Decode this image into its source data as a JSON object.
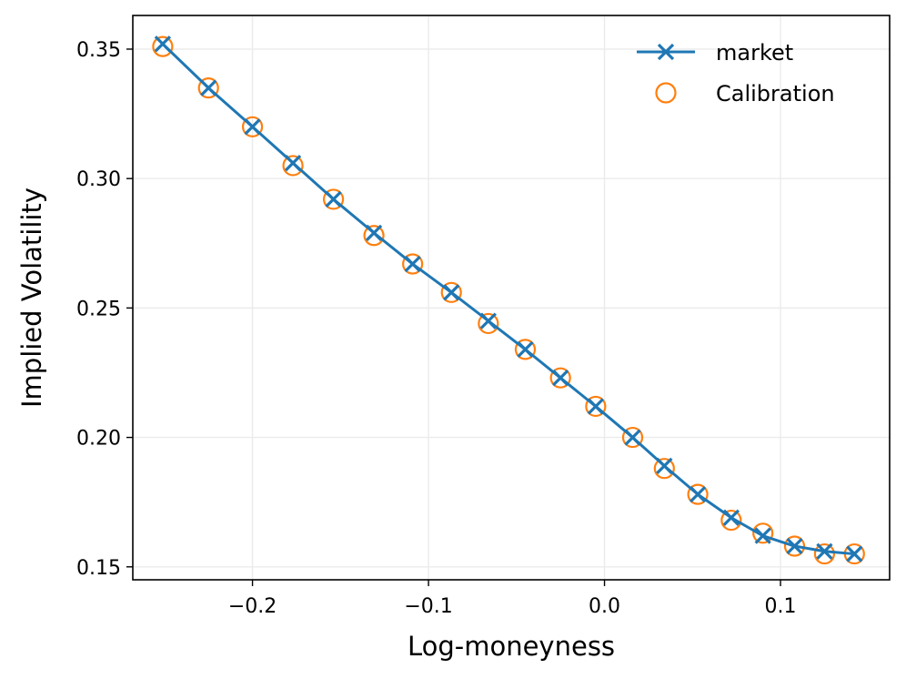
{
  "chart_data": {
    "type": "line",
    "xlabel": "Log-moneyness",
    "ylabel": "Implied Volatility",
    "xlim": [
      -0.268,
      0.162
    ],
    "ylim": [
      0.145,
      0.363
    ],
    "xticks": [
      -0.2,
      -0.1,
      0.0,
      0.1
    ],
    "xtick_labels": [
      "−0.2",
      "−0.1",
      "0.0",
      "0.1"
    ],
    "yticks": [
      0.15,
      0.2,
      0.25,
      0.3,
      0.35
    ],
    "ytick_labels": [
      "0.15",
      "0.20",
      "0.25",
      "0.30",
      "0.35"
    ],
    "grid": true,
    "legend": "top-right",
    "x": [
      -0.251,
      -0.225,
      -0.2,
      -0.177,
      -0.154,
      -0.131,
      -0.109,
      -0.087,
      -0.066,
      -0.045,
      -0.025,
      -0.005,
      0.016,
      0.034,
      0.053,
      0.072,
      0.09,
      0.108,
      0.125,
      0.142
    ],
    "series": [
      {
        "name": "market",
        "color": "#1f77b4",
        "marker": "x",
        "line": true,
        "values": [
          0.352,
          0.335,
          0.32,
          0.306,
          0.292,
          0.279,
          0.267,
          0.256,
          0.245,
          0.234,
          0.223,
          0.212,
          0.2,
          0.189,
          0.178,
          0.169,
          0.162,
          0.158,
          0.156,
          0.155
        ]
      },
      {
        "name": "Calibration",
        "color": "#ff7f0e",
        "marker": "o",
        "line": false,
        "values": [
          0.351,
          0.335,
          0.32,
          0.305,
          0.292,
          0.278,
          0.267,
          0.256,
          0.244,
          0.234,
          0.223,
          0.212,
          0.2,
          0.188,
          0.178,
          0.168,
          0.163,
          0.158,
          0.155,
          0.155
        ]
      }
    ]
  }
}
